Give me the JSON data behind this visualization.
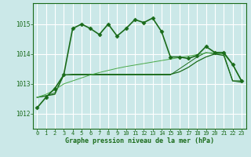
{
  "background_color": "#cbe8e8",
  "grid_color": "#ffffff",
  "line_color_dark": "#1a6b1a",
  "line_color_light": "#4aaa4a",
  "xlabel": "Graphe pression niveau de la mer (hPa)",
  "xlim": [
    -0.5,
    23.5
  ],
  "ylim": [
    1011.5,
    1015.7
  ],
  "yticks": [
    1012,
    1013,
    1014,
    1015
  ],
  "xticks": [
    0,
    1,
    2,
    3,
    4,
    5,
    6,
    7,
    8,
    9,
    10,
    11,
    12,
    13,
    14,
    15,
    16,
    17,
    18,
    19,
    20,
    21,
    22,
    23
  ],
  "series": [
    {
      "x": [
        0,
        1,
        2,
        3,
        4,
        5,
        6,
        7,
        8,
        9,
        10,
        11,
        12,
        13,
        14,
        15,
        16,
        17,
        18,
        19,
        20,
        21,
        22,
        23
      ],
      "y": [
        1012.2,
        1012.55,
        1012.85,
        1013.3,
        1014.85,
        1015.0,
        1014.85,
        1014.65,
        1015.0,
        1014.6,
        1014.85,
        1015.15,
        1015.05,
        1015.2,
        1014.75,
        1013.9,
        1013.9,
        1013.85,
        1013.95,
        1014.25,
        1014.05,
        1014.05,
        1013.65,
        1013.1
      ],
      "color": "#1a6b1a",
      "lw": 1.2,
      "marker": "D",
      "ms": 2.5
    },
    {
      "x": [
        0,
        1,
        2,
        3,
        4,
        5,
        6,
        7,
        8,
        9,
        10,
        11,
        12,
        13,
        14,
        15,
        16,
        17,
        18,
        19,
        20,
        21,
        22,
        23
      ],
      "y": [
        1012.55,
        1012.6,
        1012.65,
        1013.3,
        1013.32,
        1013.32,
        1013.32,
        1013.32,
        1013.32,
        1013.32,
        1013.32,
        1013.32,
        1013.32,
        1013.32,
        1013.32,
        1013.32,
        1013.4,
        1013.55,
        1013.75,
        1013.9,
        1014.0,
        1013.95,
        1013.1,
        1013.1
      ],
      "color": "#1a6b1a",
      "lw": 0.9,
      "marker": null,
      "ms": 0
    },
    {
      "x": [
        0,
        1,
        2,
        3,
        4,
        5,
        6,
        7,
        8,
        9,
        10,
        11,
        12,
        13,
        14,
        15,
        16,
        17,
        18,
        19,
        20,
        21,
        22,
        23
      ],
      "y": [
        1012.55,
        1012.6,
        1012.7,
        1013.3,
        1013.3,
        1013.3,
        1013.3,
        1013.3,
        1013.3,
        1013.3,
        1013.3,
        1013.3,
        1013.3,
        1013.3,
        1013.3,
        1013.3,
        1013.5,
        1013.7,
        1013.9,
        1014.05,
        1014.0,
        1014.0,
        1013.1,
        1013.05
      ],
      "color": "#1a6b1a",
      "lw": 0.7,
      "marker": null,
      "ms": 0
    },
    {
      "x": [
        0,
        1,
        2,
        3,
        4,
        5,
        6,
        7,
        8,
        9,
        10,
        11,
        12,
        13,
        14,
        15,
        16,
        17,
        18,
        19,
        20,
        21,
        22,
        23
      ],
      "y": [
        1012.55,
        1012.65,
        1012.8,
        1013.0,
        1013.1,
        1013.2,
        1013.3,
        1013.38,
        1013.45,
        1013.52,
        1013.58,
        1013.63,
        1013.68,
        1013.73,
        1013.78,
        1013.83,
        1013.88,
        1013.93,
        1013.98,
        1014.03,
        1014.05,
        1014.0,
        1013.65,
        1013.1
      ],
      "color": "#4aaa4a",
      "lw": 0.7,
      "marker": null,
      "ms": 0
    }
  ]
}
